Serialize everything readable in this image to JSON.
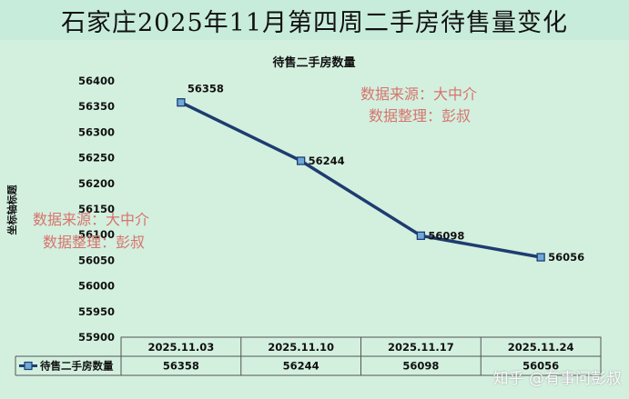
{
  "page_title": "石家庄2025年11月第四周二手房待售量变化",
  "chart_data": {
    "type": "line",
    "title": "待售二手房数量",
    "ylabel": "坐标轴标题",
    "xlabel": "",
    "categories": [
      "2025.11.03",
      "2025.11.10",
      "2025.11.17",
      "2025.11.24"
    ],
    "series": [
      {
        "name": "待售二手房数量",
        "values": [
          56358,
          56244,
          56098,
          56056
        ]
      }
    ],
    "ylim": [
      55900,
      56400
    ],
    "yticks": [
      55900,
      55950,
      56000,
      56050,
      56100,
      56150,
      56200,
      56250,
      56300,
      56350,
      56400
    ],
    "data_table": true,
    "line_color": "#1f3c70",
    "marker_color": "#6fa9d8",
    "background_color": "#d3f0df"
  },
  "watermarks": {
    "source_line": "数据来源：大中介",
    "author_line": "数据整理：彭叔",
    "corner": "知乎 @有事问彭叔"
  }
}
